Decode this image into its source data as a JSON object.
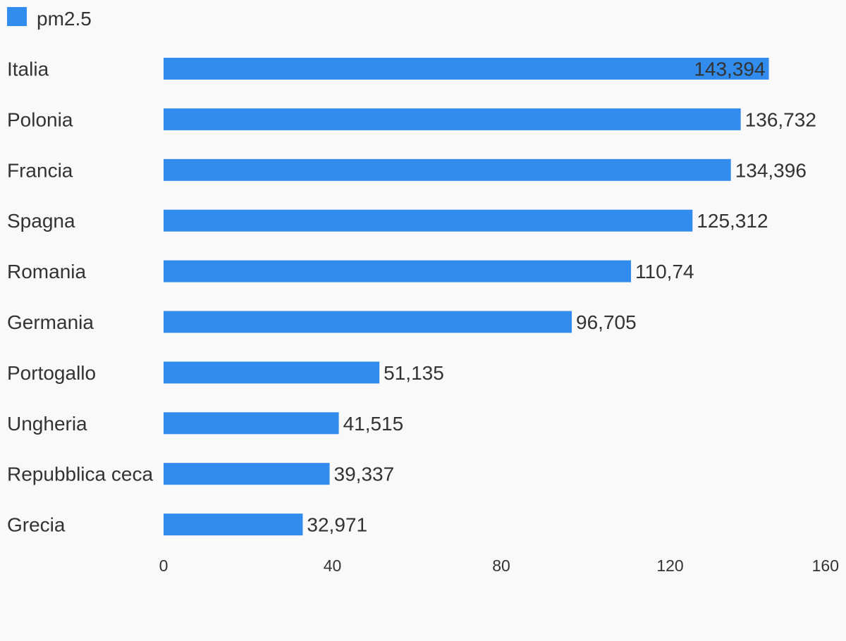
{
  "chart_data": {
    "type": "bar",
    "orientation": "horizontal",
    "legend": {
      "position": "top-left",
      "entries": [
        {
          "name": "pm2.5",
          "color": "#318ced"
        }
      ]
    },
    "categories": [
      "Italia",
      "Polonia",
      "Francia",
      "Spagna",
      "Romania",
      "Germania",
      "Portogallo",
      "Ungheria",
      "Repubblica ceca",
      "Grecia"
    ],
    "series": [
      {
        "name": "pm2.5",
        "color": "#318ced",
        "values": [
          143.394,
          136.732,
          134.396,
          125.312,
          110.74,
          96.705,
          51.135,
          41.515,
          39.337,
          32.971
        ],
        "value_labels": [
          "143,394",
          "136,732",
          "134,396",
          "125,312",
          "110,74",
          "96,705",
          "51,135",
          "41,515",
          "39,337",
          "32,971"
        ]
      }
    ],
    "xlim": [
      0,
      160
    ],
    "xticks": [
      0,
      40,
      80,
      120,
      160
    ],
    "xtick_labels": [
      "0",
      "40",
      "80",
      "120",
      "160"
    ],
    "grid": false,
    "title": "",
    "xlabel": "",
    "ylabel": ""
  }
}
